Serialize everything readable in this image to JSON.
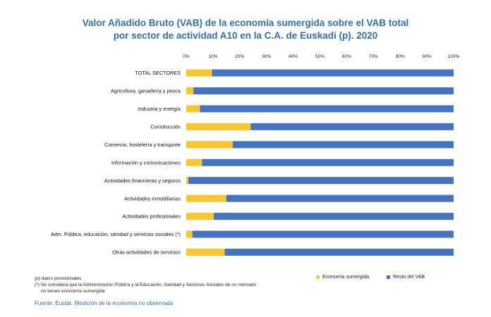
{
  "title_line1": "Valor Añadido Bruto (VAB) de la economía sumergida sobre el VAB total",
  "title_line2": "por sector de actividad A10 en la C.A. de Euskadi (p). 2020",
  "notes": {
    "line1": "(p) datos provisionales",
    "line2": "(*) Se considera que la Administración Pública y la Educación, Sanidad y Servicios Sociales de no mercado",
    "line3": "no tienen economía sumergida"
  },
  "source": "Fuente: Eustat. Medición de la economía no observada",
  "chart_data": {
    "type": "bar",
    "orientation": "horizontal",
    "stacked": true,
    "title": "Valor Añadido Bruto (VAB) de la economía sumergida sobre el VAB total por sector de actividad A10 en la C.A. de Euskadi (p). 2020",
    "categories": [
      "TOTAL SECTORES",
      "Agricultura, ganadería y pesca",
      "Industria y energía",
      "Construcción",
      "Comercio, hostelería y transporte",
      "Información y comunicaciones",
      "Actividades financieras y seguros",
      "Actividades inmobiliarias",
      "Actividades profesionales",
      "Adm. Pública, educación, sanidad y servicios sociales (*)",
      "Otras actividades de servicios"
    ],
    "series": [
      {
        "name": "Economía sumergida",
        "color": "#f9c62b",
        "values": [
          9.6,
          2.7,
          5.1,
          24.1,
          17.4,
          5.9,
          0.8,
          15.0,
          10.3,
          2.3,
          14.4
        ]
      },
      {
        "name": "Resto del VAB",
        "color": "#4472c4",
        "values": [
          90.4,
          97.3,
          94.9,
          75.9,
          82.6,
          94.1,
          99.2,
          85.0,
          89.7,
          97.7,
          85.6
        ]
      }
    ],
    "xlim": [
      0,
      100
    ],
    "x_ticks": [
      "0%",
      "10%",
      "20%",
      "30%",
      "40%",
      "50%",
      "60%",
      "70%",
      "80%",
      "90%",
      "100%"
    ],
    "x_axis_position": "top",
    "grid": false,
    "legend_position": "bottom-right"
  }
}
